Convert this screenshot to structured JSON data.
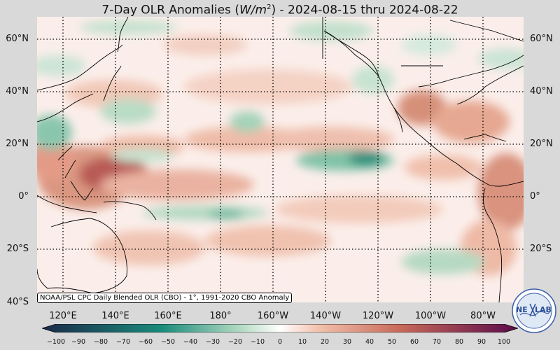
{
  "title": {
    "prefix": "7-Day OLR Anomalies (",
    "unit_base": "W/m",
    "unit_exp": "2",
    "suffix": ") - 2024-08-15 thru 2024-08-22"
  },
  "lat_labels": [
    "60°N",
    "40°N",
    "20°N",
    "0°",
    "20°S",
    "40°S"
  ],
  "lon_labels": [
    "120°E",
    "140°E",
    "160°E",
    "180°",
    "160°W",
    "140°W",
    "120°W",
    "100°W",
    "80°W"
  ],
  "credit": "NOAA/PSL CPC Daily Blended OLR (CBO) - 1°, 1991-2020 CBO Anomaly",
  "colorbar": {
    "ticks": [
      "−100",
      "−90",
      "−80",
      "−70",
      "−60",
      "−50",
      "−40",
      "−30",
      "−20",
      "−10",
      "0",
      "10",
      "20",
      "30",
      "40",
      "50",
      "60",
      "70",
      "80",
      "90",
      "100"
    ],
    "min": -100,
    "max": 100,
    "colors": {
      "neg_strong": "#1a2a4a",
      "neg_mid": "#1a8a7a",
      "neg_light": "#b6dcc4",
      "zero": "#ffffff",
      "pos_light": "#f2c2ad",
      "pos_mid": "#c86a5a",
      "pos_strong": "#5a0a4a"
    }
  },
  "logo": {
    "text_left": "NE",
    "text_right": "LAB"
  }
}
